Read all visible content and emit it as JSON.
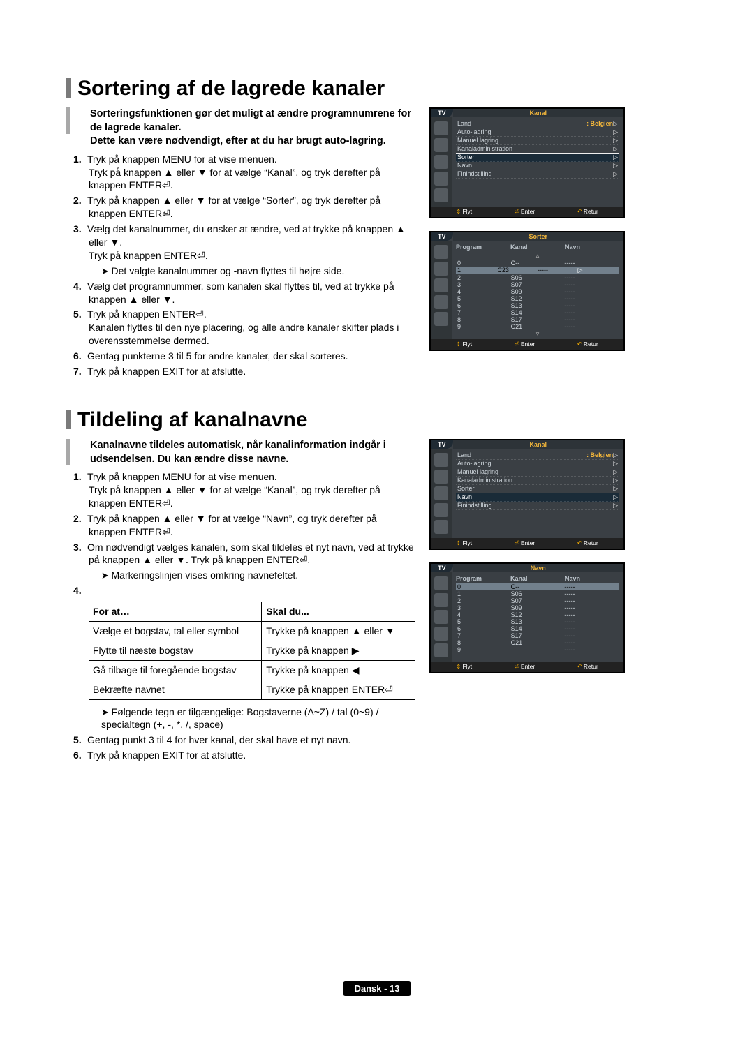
{
  "section1": {
    "heading": "Sortering af de lagrede kanaler",
    "intro": "Sorteringsfunktionen gør det muligt at ændre programnumrene for de lagrede kanaler.\nDette kan være nødvendigt, efter at du har brugt auto-lagring.",
    "steps": {
      "s1a": "Tryk på knappen MENU for at vise menuen.",
      "s1b": "Tryk på knappen ▲ eller ▼ for at vælge “Kanal”, og tryk derefter på knappen ENTER⏎.",
      "s2": "Tryk på knappen ▲ eller ▼ for at vælge “Sorter”, og tryk derefter på knappen ENTER⏎.",
      "s3a": "Vælg det kanalnummer, du ønsker at ændre, ved at trykke på knappen ▲ eller ▼.",
      "s3b": "Tryk på knappen ENTER⏎.",
      "s3note": "Det valgte kanalnummer og -navn flyttes til højre side.",
      "s4": "Vælg det programnummer, som kanalen skal flyttes til, ved at trykke på knappen ▲ eller ▼.",
      "s5a": "Tryk på knappen ENTER⏎.",
      "s5b": "Kanalen flyttes til den nye placering, og alle andre kanaler skifter plads i overensstemmelse dermed.",
      "s6": "Gentag punkterne 3 til 5 for andre kanaler, der skal sorteres.",
      "s7": "Tryk på knappen EXIT for at afslutte."
    }
  },
  "section2": {
    "heading": "Tildeling af kanalnavne",
    "intro": "Kanalnavne tildeles automatisk, når kanalinformation indgår i udsendelsen. Du kan ændre disse navne.",
    "steps": {
      "s1a": "Tryk på knappen MENU for at vise menuen.",
      "s1b": "Tryk på knappen ▲ eller ▼ for at vælge “Kanal”, og tryk derefter på knappen ENTER⏎.",
      "s2": "Tryk på knappen ▲ eller ▼ for at vælge “Navn”, og tryk derefter på knappen ENTER⏎.",
      "s3a": "Om nødvendigt vælges kanalen, som skal tildeles et nyt navn, ved at trykke på knappen ▲ eller ▼. Tryk på knappen ENTER⏎.",
      "s3note": "Markeringslinjen vises omkring navnefeltet.",
      "table": {
        "h1": "For at…",
        "h2": "Skal du...",
        "r1c1": "Vælge et bogstav, tal eller symbol",
        "r1c2": "Trykke på knappen ▲ eller ▼",
        "r2c1": "Flytte til næste bogstav",
        "r2c2": "Trykke på knappen ▶",
        "r3c1": "Gå tilbage til foregående bogstav",
        "r3c2": "Trykke på knappen ◀",
        "r4c1": "Bekræfte navnet",
        "r4c2": "Trykke på knappen ENTER⏎"
      },
      "s4note": "Følgende tegn er tilgængelige: Bogstaverne (A~Z) / tal (0~9) / specialtegn (+, -, *, /, space)",
      "s5": "Gentag punkt 3 til 4 for hver kanal, der skal have et nyt navn.",
      "s6": "Tryk på knappen EXIT for at afslutte."
    }
  },
  "osd": {
    "tv": "TV",
    "kanalTitle": "Kanal",
    "sorterTitle": "Sorter",
    "navnTitle": "Navn",
    "menu": {
      "land": "Land",
      "landVal": ": Belgien",
      "auto": "Auto-lagring",
      "manuel": "Manuel lagring",
      "admin": "Kanaladministration",
      "sorter": "Sorter",
      "navn": "Navn",
      "fin": "Finindstilling"
    },
    "cols": {
      "program": "Program",
      "kanal": "Kanal",
      "navn": "Navn"
    },
    "channels": {
      "p0": "0",
      "p1": "1",
      "p2": "2",
      "p3": "3",
      "p4": "4",
      "p5": "5",
      "p6": "6",
      "p7": "7",
      "p8": "8",
      "p9": "9",
      "c0": "C--",
      "c1": "C23",
      "c2": "S06",
      "c3": "S07",
      "c4": "S09",
      "c5": "S12",
      "c6": "S13",
      "c7": "S14",
      "c8": "S17",
      "c9": "C21",
      "dash": "-----"
    },
    "foot": {
      "flyt": "Flyt",
      "enter": "Enter",
      "retur": "Retur"
    }
  },
  "footer": "Dansk - 13"
}
